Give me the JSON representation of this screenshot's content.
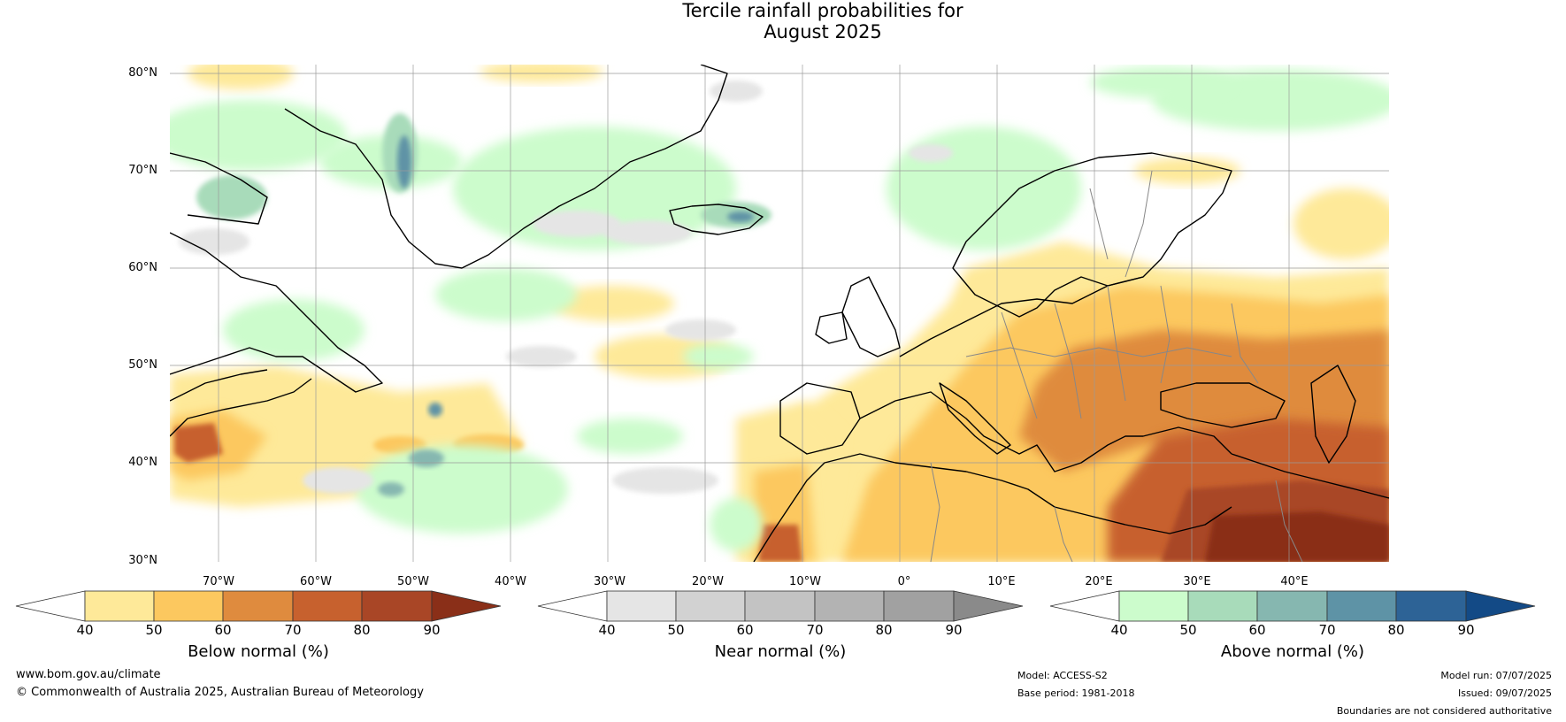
{
  "title": {
    "line1": "Tercile rainfall probabilities for",
    "line2": "August 2025"
  },
  "map": {
    "lat_labels": [
      "80°N",
      "70°N",
      "60°N",
      "50°N",
      "40°N",
      "30°N"
    ],
    "lon_labels": [
      "70°W",
      "60°W",
      "50°W",
      "40°W",
      "30°W",
      "20°W",
      "10°W",
      "0°",
      "10°E",
      "20°E",
      "30°E",
      "40°E"
    ]
  },
  "colorbars": {
    "below": {
      "label": "Below normal (%)",
      "ticks": [
        "40",
        "50",
        "60",
        "70",
        "80",
        "90"
      ],
      "colors": [
        "#ffffff",
        "#fee999",
        "#fcc85f",
        "#df8b3e",
        "#c7612e",
        "#a94626",
        "#8a2f18"
      ]
    },
    "near": {
      "label": "Near normal (%)",
      "ticks": [
        "40",
        "50",
        "60",
        "70",
        "80",
        "90"
      ],
      "colors": [
        "#ffffff",
        "#e5e5e5",
        "#d2d2d2",
        "#c3c3c3",
        "#b3b3b3",
        "#a1a1a1",
        "#8a8a8a"
      ]
    },
    "above": {
      "label": "Above normal (%)",
      "ticks": [
        "40",
        "50",
        "60",
        "70",
        "80",
        "90"
      ],
      "colors": [
        "#ffffff",
        "#ccfccc",
        "#a8dbba",
        "#86b7b0",
        "#5e93a6",
        "#2d6396",
        "#134a86"
      ]
    }
  },
  "footer": {
    "website": "www.bom.gov.au/climate",
    "copyright": "© Commonwealth of Australia 2025, Australian Bureau of Meteorology",
    "model": "Model: ACCESS-S2",
    "base_period": "Base period: 1981-2018",
    "model_run": "Model run: 07/07/2025",
    "issued": "Issued: 09/07/2025",
    "disclaimer": "Boundaries are not considered authoritative"
  }
}
